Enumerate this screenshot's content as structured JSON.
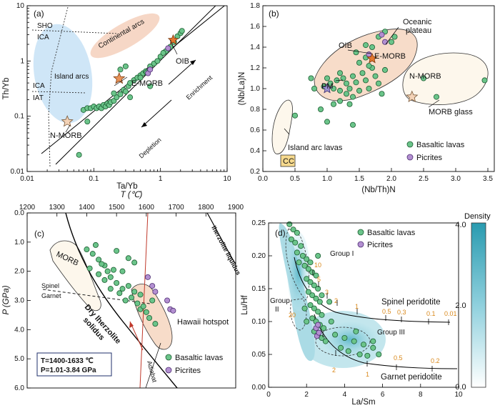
{
  "panels": {
    "a": {
      "label": "(a)",
      "xlabel": "Ta/Yb",
      "ylabel": "Th/Yb",
      "xticks": [
        "0.01",
        "0.1",
        "1",
        "10"
      ],
      "yticks": [
        "0.01",
        "0.1",
        "1",
        "10"
      ],
      "labels": {
        "sho": "SHO",
        "ica_top": "ICA",
        "continental": "Continental arcs",
        "island": "Island arcs",
        "ica_low": "ICA",
        "iat": "IAT",
        "oib": "OIB",
        "emorb": "E-MORB",
        "nmorb": "N-MORB",
        "enrichment": "Enrichment",
        "depletion": "Depletion"
      }
    },
    "b": {
      "label": "(b)",
      "xlabel": "(Nb/Th)N",
      "ylabel": "(Nb/La)N",
      "xticks": [
        "0.0",
        "0.5",
        "1.0",
        "1.5",
        "2.0",
        "2.5",
        "3.0",
        "3.5"
      ],
      "yticks": [
        "0.2",
        "0.4",
        "0.6",
        "0.8",
        "1.0",
        "1.2",
        "1.4",
        "1.6",
        "1.8"
      ],
      "labels": {
        "oceanic1": "Oceanic",
        "oceanic2": "plateau",
        "oib": "OIB",
        "emorb": "E-MORB",
        "pm": "PM",
        "nmorb": "N-MORB",
        "morbglass": "MORB glass",
        "iarc": "Island arc lavas",
        "cc": "CC"
      },
      "legend": [
        "Basaltic lavas",
        "Picrites"
      ]
    },
    "c": {
      "label": "(c)",
      "toplabel": "T (℃)",
      "ylabel": "P (GPa)",
      "xticks": [
        "1200",
        "1300",
        "1400",
        "1500",
        "1600",
        "1700",
        "1800",
        "1900"
      ],
      "yticks": [
        "0.0",
        "1.0",
        "2.0",
        "3.0",
        "4.0",
        "5.0",
        "6.0"
      ],
      "labels": {
        "morb": "MORB",
        "spinel": "Spinel",
        "garnet": "Garnet",
        "dry1": "Dry lherzolite",
        "dry2": "solidus",
        "liquidus": "lherzolite liquidus",
        "hawaii": "Hawaii hotspot",
        "adiabat": "Adiabat",
        "tbox": "T=1400-1633 ℃",
        "pbox": "P=1.01-3.84 GPa"
      },
      "legend": [
        "Basaltic lavas",
        "Picrites"
      ]
    },
    "d": {
      "label": "(d)",
      "xlabel": "La/Sm",
      "ylabel": "Lu/Hf",
      "xticks": [
        "0",
        "2",
        "4",
        "6",
        "8",
        "10"
      ],
      "yticks": [
        "0.00",
        "0.05",
        "0.10",
        "0.15",
        "0.20",
        "0.25"
      ],
      "labels": {
        "group1": "Group I",
        "group2a": "Group",
        "group2b": "II",
        "group3": "Group III",
        "spinel": "Spinel peridotite",
        "garnet": "Garnet peridotite"
      },
      "spinel_marks": [
        "10",
        "5",
        "3",
        "2",
        "1",
        "0.5",
        "0.3",
        "0.1",
        "0.01"
      ],
      "garnet_marks": [
        "20",
        "2",
        "1",
        "0.5",
        "0.2"
      ],
      "legend": [
        "Basaltic lavas",
        "Picrites"
      ],
      "colorbar": {
        "title": "Density",
        "ticks": [
          "4.0",
          "2.0",
          "0.0"
        ]
      }
    }
  },
  "chart_data": [
    {
      "type": "scatter",
      "panel": "a",
      "title": "",
      "xscale": "log",
      "yscale": "log",
      "xlim": [
        0.01,
        10
      ],
      "ylim": [
        0.01,
        10
      ],
      "series": [
        {
          "name": "Basaltic lavas",
          "points": [
            [
              0.07,
              0.13
            ],
            [
              0.08,
              0.14
            ],
            [
              0.09,
              0.14
            ],
            [
              0.1,
              0.15
            ],
            [
              0.11,
              0.14
            ],
            [
              0.12,
              0.15
            ],
            [
              0.13,
              0.14
            ],
            [
              0.14,
              0.16
            ],
            [
              0.15,
              0.15
            ],
            [
              0.16,
              0.17
            ],
            [
              0.17,
              0.16
            ],
            [
              0.18,
              0.18
            ],
            [
              0.2,
              0.19
            ],
            [
              0.22,
              0.22
            ],
            [
              0.25,
              0.25
            ],
            [
              0.28,
              0.3
            ],
            [
              0.3,
              0.28
            ],
            [
              0.33,
              0.35
            ],
            [
              0.35,
              0.4
            ],
            [
              0.4,
              0.45
            ],
            [
              0.45,
              0.5
            ],
            [
              0.5,
              0.55
            ],
            [
              0.55,
              0.6
            ],
            [
              0.6,
              0.65
            ],
            [
              0.7,
              0.8
            ],
            [
              0.8,
              0.9
            ],
            [
              0.9,
              1.0
            ],
            [
              1.0,
              1.2
            ],
            [
              1.2,
              1.5
            ],
            [
              1.4,
              1.8
            ],
            [
              1.6,
              2.2
            ],
            [
              1.8,
              2.8
            ],
            [
              2.0,
              3.2
            ],
            [
              2.1,
              3.5
            ],
            [
              0.25,
              0.7
            ],
            [
              0.3,
              0.8
            ],
            [
              0.5,
              0.5
            ],
            [
              0.62,
              0.62
            ],
            [
              0.7,
              0.35
            ],
            [
              0.06,
              0.02
            ],
            [
              0.08,
              0.08
            ],
            [
              1.1,
              1.4
            ],
            [
              0.35,
              0.22
            ],
            [
              0.2,
              0.26
            ]
          ]
        },
        {
          "name": "Picrites",
          "points": [
            [
              0.65,
              0.6
            ],
            [
              0.7,
              0.7
            ],
            [
              1.3,
              1.7
            ]
          ]
        },
        {
          "name": "OIB",
          "points": [
            [
              1.55,
              2.4
            ]
          ]
        },
        {
          "name": "E-MORB",
          "points": [
            [
              0.24,
              0.48
            ]
          ]
        },
        {
          "name": "N-MORB",
          "points": [
            [
              0.04,
              0.08
            ]
          ]
        }
      ]
    },
    {
      "type": "scatter",
      "panel": "b",
      "title": "",
      "xlim": [
        0.0,
        3.6
      ],
      "ylim": [
        0.2,
        1.8
      ],
      "series": [
        {
          "name": "Basaltic lavas",
          "points": [
            [
              0.95,
              1.02
            ],
            [
              1.05,
              1.05
            ],
            [
              1.1,
              1.0
            ],
            [
              1.15,
              1.08
            ],
            [
              1.2,
              0.98
            ],
            [
              1.25,
              1.1
            ],
            [
              1.3,
              1.05
            ],
            [
              1.35,
              1.0
            ],
            [
              1.4,
              1.12
            ],
            [
              1.45,
              1.06
            ],
            [
              1.5,
              0.98
            ],
            [
              1.55,
              1.15
            ],
            [
              1.6,
              1.08
            ],
            [
              1.65,
              1.0
            ],
            [
              1.7,
              1.2
            ],
            [
              1.75,
              1.12
            ],
            [
              1.8,
              1.05
            ],
            [
              1.85,
              0.95
            ],
            [
              1.9,
              1.18
            ],
            [
              1.2,
              1.15
            ],
            [
              1.3,
              0.95
            ],
            [
              1.4,
              0.92
            ],
            [
              1.5,
              1.25
            ],
            [
              1.6,
              1.3
            ],
            [
              1.7,
              1.4
            ],
            [
              1.8,
              1.5
            ],
            [
              1.9,
              1.55
            ],
            [
              2.0,
              1.45
            ],
            [
              1.1,
              0.85
            ],
            [
              1.2,
              0.88
            ],
            [
              1.35,
              0.85
            ],
            [
              0.9,
              0.8
            ],
            [
              0.8,
              1.0
            ],
            [
              0.75,
              1.1
            ],
            [
              2.5,
              1.1
            ],
            [
              2.7,
              0.92
            ],
            [
              3.45,
              1.08
            ],
            [
              0.5,
              0.74
            ],
            [
              1.0,
              0.68
            ],
            [
              1.4,
              0.65
            ],
            [
              1.45,
              1.35
            ],
            [
              1.6,
              1.42
            ],
            [
              1.65,
              1.22
            ],
            [
              1.0,
              1.1
            ],
            [
              2.05,
              1.5
            ]
          ]
        },
        {
          "name": "Picrites",
          "points": [
            [
              1.65,
              1.33
            ],
            [
              1.85,
              1.52
            ],
            [
              1.9,
              1.45
            ]
          ]
        },
        {
          "name": "OIB",
          "points": [
            [
              1.7,
              1.29
            ]
          ]
        },
        {
          "name": "PM",
          "points": [
            [
              1.0,
              1.0
            ]
          ]
        },
        {
          "name": "N-MORB",
          "points": [
            [
              2.32,
              0.92
            ]
          ]
        }
      ]
    },
    {
      "type": "scatter",
      "panel": "c",
      "title": "",
      "xlabel": "T (℃)",
      "ylabel": "P (GPa)",
      "xlim": [
        1200,
        1900
      ],
      "ylim": [
        6.0,
        0.0
      ],
      "series": [
        {
          "name": "Basaltic lavas",
          "points": [
            [
              1430,
              1.1
            ],
            [
              1400,
              1.25
            ],
            [
              1420,
              1.4
            ],
            [
              1440,
              1.6
            ],
            [
              1460,
              1.8
            ],
            [
              1410,
              1.9
            ],
            [
              1450,
              1.75
            ],
            [
              1470,
              2.0
            ],
            [
              1480,
              2.2
            ],
            [
              1500,
              2.4
            ],
            [
              1440,
              2.1
            ],
            [
              1520,
              2.6
            ],
            [
              1540,
              2.5
            ],
            [
              1550,
              2.9
            ],
            [
              1560,
              2.7
            ],
            [
              1480,
              2.6
            ],
            [
              1510,
              2.75
            ],
            [
              1530,
              3.0
            ],
            [
              1570,
              3.1
            ],
            [
              1580,
              3.3
            ],
            [
              1600,
              3.4
            ],
            [
              1590,
              3.2
            ],
            [
              1620,
              3.0
            ],
            [
              1500,
              1.3
            ],
            [
              1540,
              1.55
            ],
            [
              1560,
              1.7
            ],
            [
              1520,
              2.0
            ],
            [
              1460,
              2.3
            ],
            [
              1490,
              1.95
            ],
            [
              1580,
              2.8
            ],
            [
              1610,
              3.6
            ],
            [
              1630,
              3.8
            ]
          ]
        },
        {
          "name": "Picrites",
          "points": [
            [
              1605,
              2.2
            ],
            [
              1620,
              2.5
            ],
            [
              1630,
              2.7
            ],
            [
              1670,
              3.0
            ],
            [
              1680,
              3.3
            ],
            [
              1690,
              3.35
            ]
          ]
        }
      ]
    },
    {
      "type": "scatter",
      "panel": "d",
      "title": "",
      "xlim": [
        0,
        10
      ],
      "ylim": [
        0.0,
        0.25
      ],
      "series": [
        {
          "name": "Basaltic lavas",
          "points": [
            [
              1.1,
              0.248
            ],
            [
              1.3,
              0.24
            ],
            [
              1.5,
              0.235
            ],
            [
              1.2,
              0.225
            ],
            [
              1.4,
              0.22
            ],
            [
              1.7,
              0.215
            ],
            [
              1.5,
              0.205
            ],
            [
              1.8,
              0.2
            ],
            [
              2.0,
              0.195
            ],
            [
              2.2,
              0.19
            ],
            [
              1.6,
              0.19
            ],
            [
              1.9,
              0.185
            ],
            [
              2.1,
              0.18
            ],
            [
              2.3,
              0.175
            ],
            [
              2.5,
              0.17
            ],
            [
              2.0,
              0.165
            ],
            [
              2.2,
              0.16
            ],
            [
              2.4,
              0.155
            ],
            [
              2.6,
              0.15
            ],
            [
              2.1,
              0.145
            ],
            [
              2.3,
              0.14
            ],
            [
              2.5,
              0.135
            ],
            [
              2.7,
              0.13
            ],
            [
              2.2,
              0.125
            ],
            [
              2.4,
              0.12
            ],
            [
              2.6,
              0.115
            ],
            [
              2.8,
              0.11
            ],
            [
              2.3,
              0.105
            ],
            [
              2.5,
              0.1
            ],
            [
              2.7,
              0.095
            ],
            [
              2.9,
              0.09
            ],
            [
              2.4,
              0.085
            ],
            [
              2.6,
              0.08
            ],
            [
              2.8,
              0.075
            ],
            [
              3.0,
              0.07
            ],
            [
              3.5,
              0.08
            ],
            [
              4.0,
              0.075
            ],
            [
              4.5,
              0.07
            ],
            [
              5.0,
              0.065
            ],
            [
              5.5,
              0.06
            ],
            [
              3.8,
              0.06
            ],
            [
              4.2,
              0.055
            ],
            [
              4.8,
              0.05
            ],
            [
              5.2,
              0.048
            ],
            [
              5.8,
              0.05
            ],
            [
              4.6,
              0.085
            ],
            [
              5.5,
              0.07
            ],
            [
              2.0,
              0.1
            ],
            [
              2.8,
              0.14
            ],
            [
              2.6,
              0.2
            ],
            [
              3.2,
              0.13
            ],
            [
              3.3,
              0.1
            ],
            [
              1.9,
              0.12
            ]
          ]
        },
        {
          "name": "Picrites",
          "points": [
            [
              2.5,
              0.09
            ],
            [
              2.6,
              0.095
            ],
            [
              2.55,
              0.078
            ],
            [
              2.65,
              0.083
            ]
          ]
        }
      ]
    }
  ]
}
